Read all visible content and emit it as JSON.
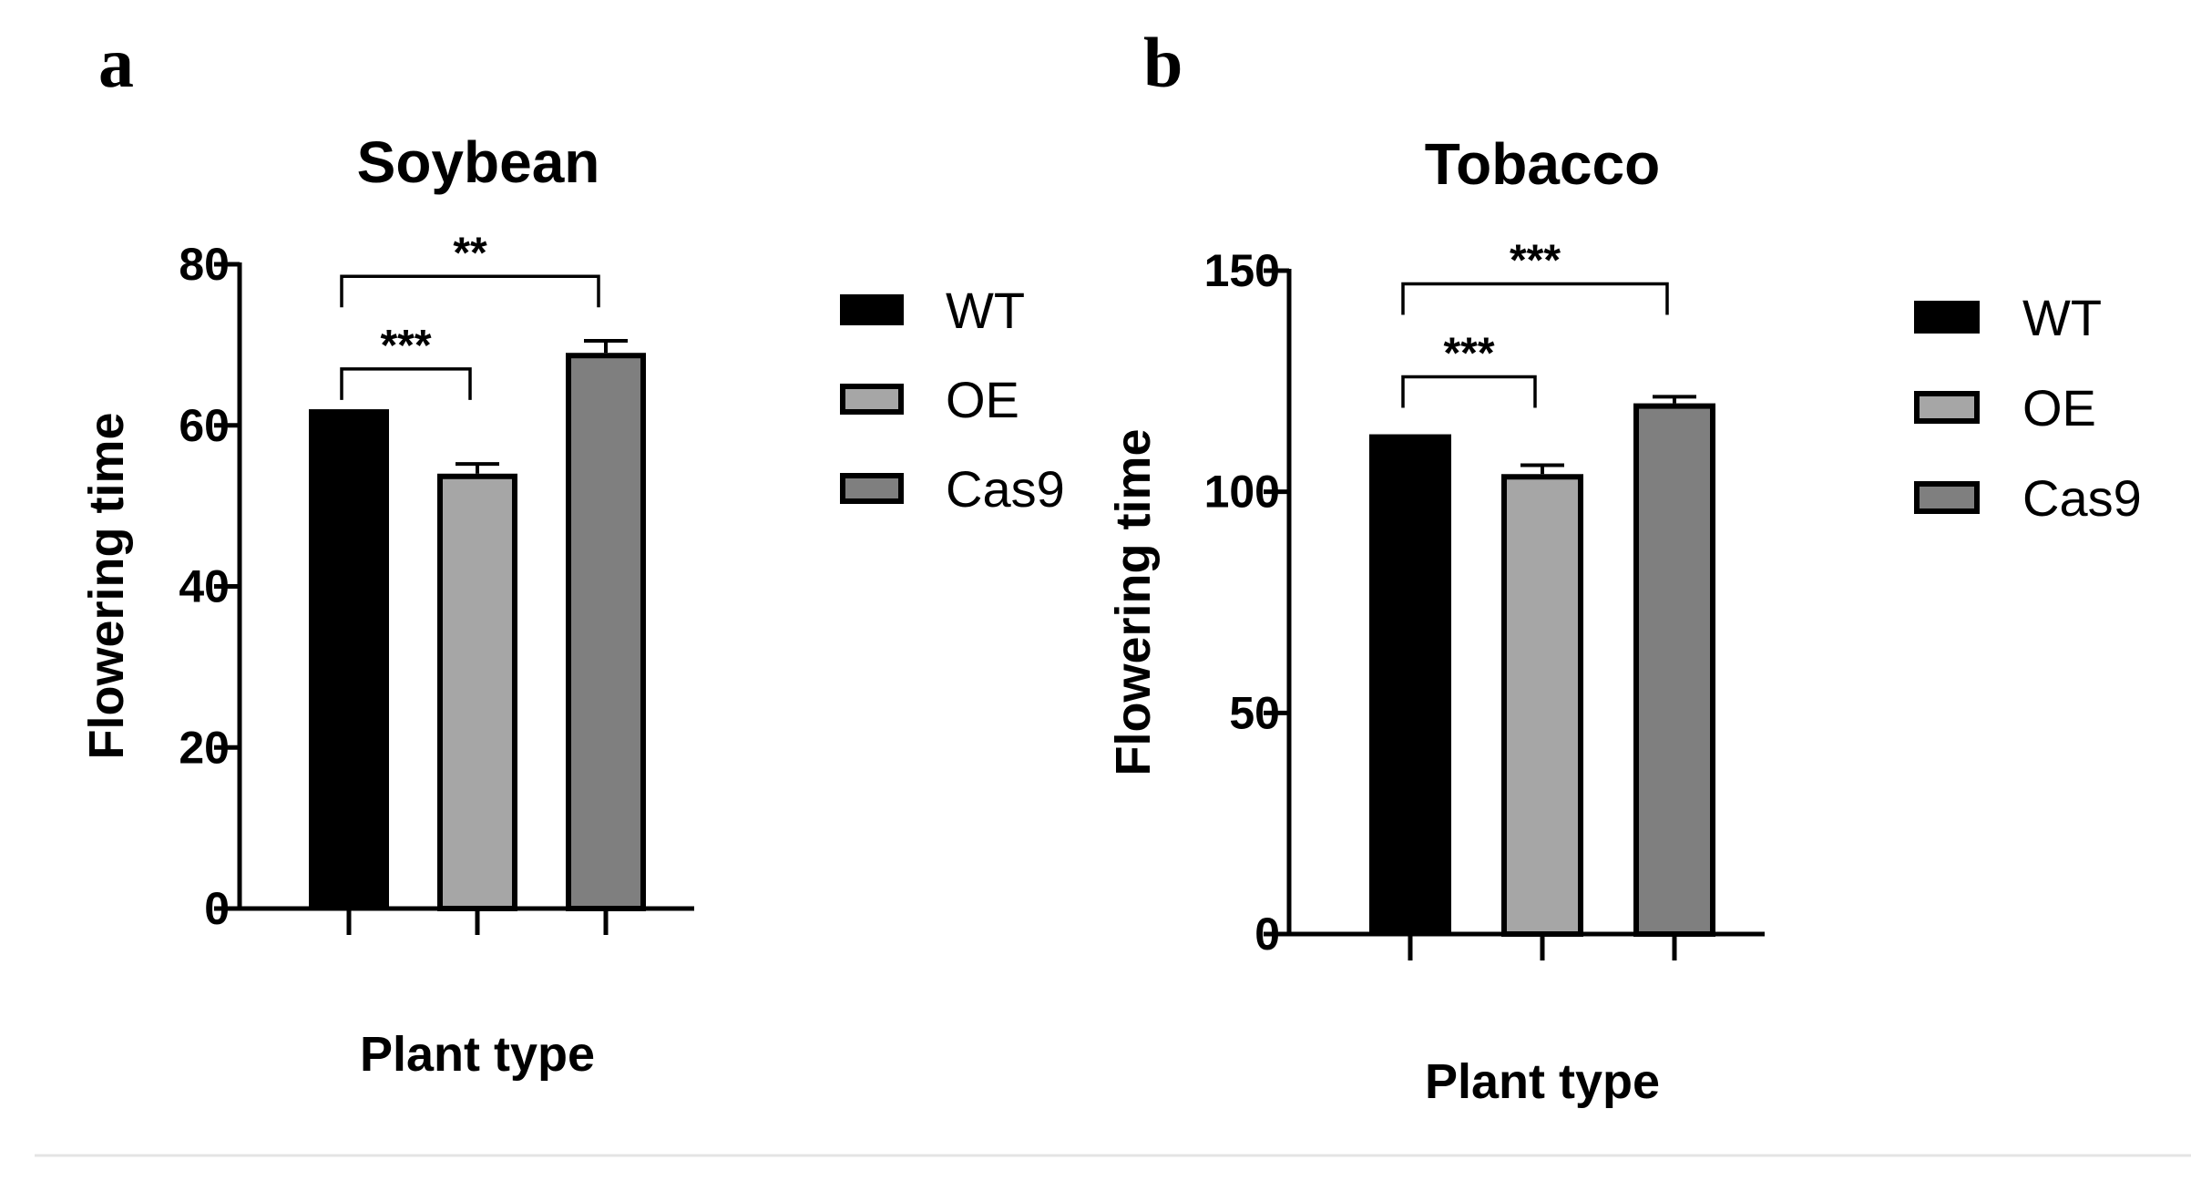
{
  "chart_data": [
    {
      "panel": "a",
      "type": "bar",
      "title": "Soybean",
      "xlabel": "Plant type",
      "ylabel": "Flowering time",
      "categories": [
        "WT",
        "OE",
        "Cas9"
      ],
      "values": [
        62,
        54,
        69
      ],
      "errors": [
        0,
        1.2,
        1.5
      ],
      "colors": [
        "#000000",
        "#a6a6a6",
        "#7f7f7f"
      ],
      "ylim": [
        0,
        80
      ],
      "yticks": [
        0,
        20,
        40,
        60,
        80
      ],
      "tick_labels": [
        "0",
        "20",
        "40",
        "60",
        "80"
      ],
      "significance": [
        {
          "from": "WT",
          "to": "OE",
          "label": "***",
          "y": 67
        },
        {
          "from": "WT",
          "to": "Cas9",
          "label": "**",
          "y": 78.5
        }
      ],
      "legend": {
        "position": "right",
        "entries": [
          {
            "label": "WT",
            "color": "#000000"
          },
          {
            "label": "OE",
            "color": "#a6a6a6"
          },
          {
            "label": "Cas9",
            "color": "#7f7f7f"
          }
        ]
      }
    },
    {
      "panel": "b",
      "type": "bar",
      "title": "Tobacco",
      "xlabel": "Plant type",
      "ylabel": "Flowering time",
      "categories": [
        "WT",
        "OE",
        "Cas9"
      ],
      "values": [
        113,
        104,
        120
      ],
      "errors": [
        0,
        2,
        1.5
      ],
      "colors": [
        "#000000",
        "#a6a6a6",
        "#7f7f7f"
      ],
      "ylim": [
        0,
        150
      ],
      "yticks": [
        0,
        50,
        100,
        150
      ],
      "tick_labels": [
        "0",
        "50",
        "100",
        "150"
      ],
      "significance": [
        {
          "from": "WT",
          "to": "OE",
          "label": "***",
          "y": 126
        },
        {
          "from": "WT",
          "to": "Cas9",
          "label": "***",
          "y": 147
        }
      ],
      "legend": {
        "position": "right",
        "entries": [
          {
            "label": "WT",
            "color": "#000000"
          },
          {
            "label": "OE",
            "color": "#a6a6a6"
          },
          {
            "label": "Cas9",
            "color": "#7f7f7f"
          }
        ]
      }
    }
  ]
}
